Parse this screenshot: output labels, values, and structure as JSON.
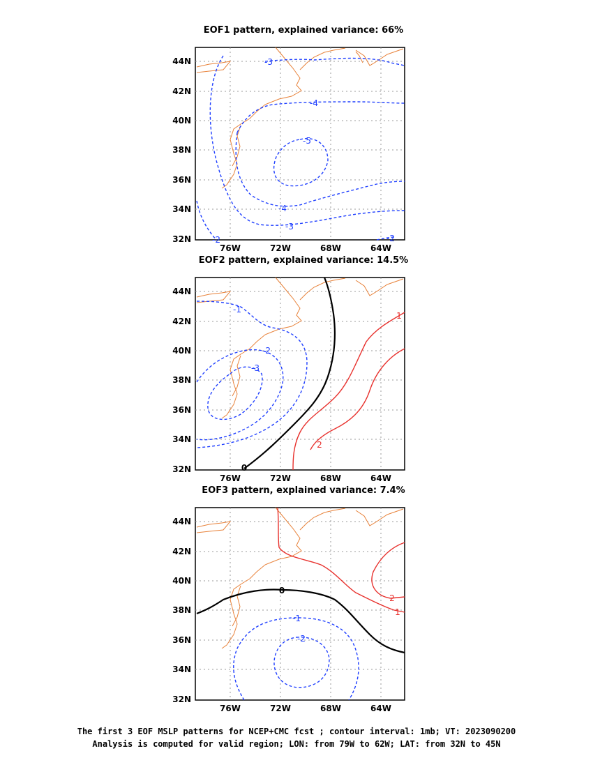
{
  "panels": [
    {
      "title": "EOF1 pattern, explained variance: 66%"
    },
    {
      "title": "EOF2 pattern, explained variance: 14.5%"
    },
    {
      "title": "EOF3 pattern, explained variance: 7.4%"
    }
  ],
  "axes": {
    "lat_ticks": [
      "44N",
      "42N",
      "40N",
      "38N",
      "36N",
      "34N",
      "32N"
    ],
    "lon_ticks": [
      "76W",
      "72W",
      "68W",
      "64W"
    ]
  },
  "contour_labels": {
    "eof1": [
      "-3",
      "-4",
      "-5",
      "-4",
      "-3",
      "-2",
      "-2"
    ],
    "eof2": [
      "-1",
      "-2",
      "-3",
      "0",
      "1",
      "2"
    ],
    "eof3": [
      "0",
      "-1",
      "-2",
      "1",
      "2"
    ]
  },
  "colors": {
    "negative": "#1f3fff",
    "positive": "#e8322e",
    "zero": "#000000",
    "coast": "#e8823a",
    "grid": "#9a9a9a"
  },
  "footer": {
    "line1": "The first 3 EOF MSLP patterns for NCEP+CMC fcst ; contour interval: 1mb; VT: 2023090200",
    "line2": "Analysis is computed for valid region; LON: from 79W to 62W; LAT: from 32N to 45N"
  }
}
